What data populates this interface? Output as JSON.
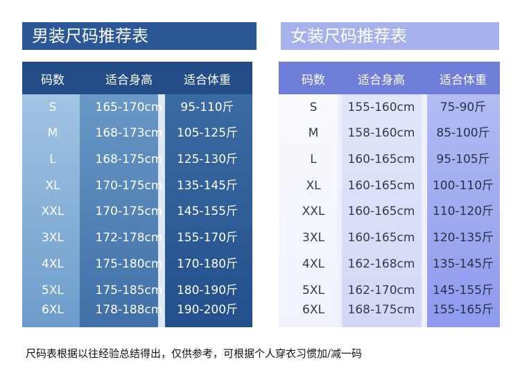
{
  "men": {
    "title": "男装尺码推荐表",
    "headers": [
      "码数",
      "适合身高",
      "适合体重"
    ],
    "rows": [
      [
        "S",
        "165-170cm",
        "95-110斤"
      ],
      [
        "M",
        "168-173cm",
        "105-125斤"
      ],
      [
        "L",
        "168-175cm",
        "125-130斤"
      ],
      [
        "XL",
        "170-175cm",
        "135-145斤"
      ],
      [
        "XXL",
        "170-175cm",
        "145-155斤"
      ],
      [
        "3XL",
        "172-178cm",
        "155-170斤"
      ],
      [
        "4XL",
        "175-180cm",
        "170-180斤"
      ],
      [
        "5XL",
        "175-185cm",
        "180-190斤"
      ],
      [
        "6XL",
        "178-188cm",
        "190-200斤"
      ]
    ]
  },
  "women": {
    "title": "女装尺码推荐表",
    "headers": [
      "码数",
      "适合身高",
      "适合体重"
    ],
    "rows": [
      [
        "S",
        "155-160cm",
        "75-90斤"
      ],
      [
        "M",
        "158-160cm",
        "85-100斤"
      ],
      [
        "L",
        "160-165cm",
        "95-105斤"
      ],
      [
        "XL",
        "160-165cm",
        "100-110斤"
      ],
      [
        "XXL",
        "160-165cm",
        "110-120斤"
      ],
      [
        "3XL",
        "160-165cm",
        "120-135斤"
      ],
      [
        "4XL",
        "162-168cm",
        "135-145斤"
      ],
      [
        "5XL",
        "162-170cm",
        "145-155斤"
      ],
      [
        "6XL",
        "168-175cm",
        "155-165斤"
      ]
    ]
  },
  "footnote": "尺码表根据以往经验总结得出，仅供参考，可根据个人穿衣习惯加/减一码"
}
